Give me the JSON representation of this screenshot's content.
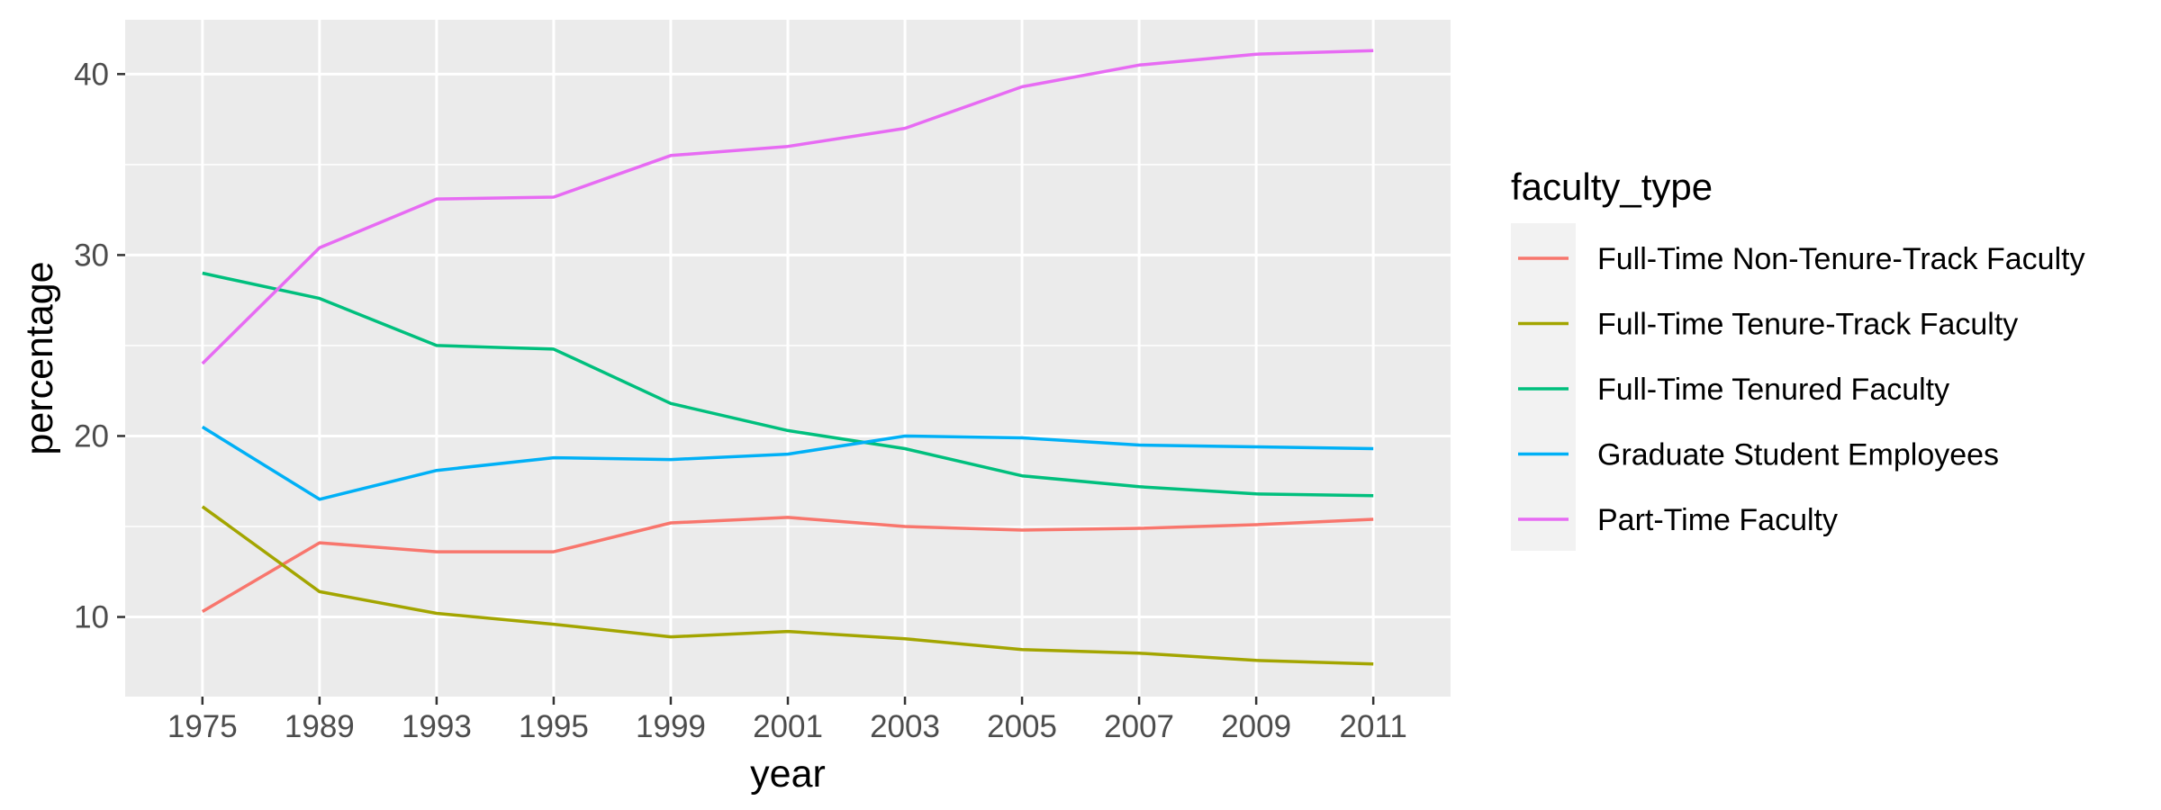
{
  "chart_data": {
    "type": "line",
    "xlabel": "year",
    "ylabel": "percentage",
    "x": [
      "1975",
      "1989",
      "1993",
      "1995",
      "1999",
      "2001",
      "2003",
      "2005",
      "2007",
      "2009",
      "2011"
    ],
    "ylim": [
      5.6,
      43
    ],
    "yticks": [
      10,
      20,
      30,
      40
    ],
    "grid": true,
    "legend": {
      "title": "faculty_type",
      "placement": "right"
    },
    "series": [
      {
        "name": "Full-Time Non-Tenure-Track Faculty",
        "color": "#F8766D",
        "values": [
          10.3,
          14.1,
          13.6,
          13.6,
          15.2,
          15.5,
          15.0,
          14.8,
          14.9,
          15.1,
          15.4
        ]
      },
      {
        "name": "Full-Time Tenure-Track Faculty",
        "color": "#A3A500",
        "values": [
          16.1,
          11.4,
          10.2,
          9.6,
          8.9,
          9.2,
          8.8,
          8.2,
          8.0,
          7.6,
          7.4
        ]
      },
      {
        "name": "Full-Time Tenured Faculty",
        "color": "#00BF7D",
        "values": [
          29.0,
          27.6,
          25.0,
          24.8,
          21.8,
          20.3,
          19.3,
          17.8,
          17.2,
          16.8,
          16.7
        ]
      },
      {
        "name": "Graduate Student Employees",
        "color": "#00B0F6",
        "values": [
          20.5,
          16.5,
          18.1,
          18.8,
          18.7,
          19.0,
          20.0,
          19.9,
          19.5,
          19.4,
          19.3
        ]
      },
      {
        "name": "Part-Time Faculty",
        "color": "#E76BF3",
        "values": [
          24.0,
          30.4,
          33.1,
          33.2,
          35.5,
          36.0,
          37.0,
          39.3,
          40.5,
          41.1,
          41.3
        ]
      }
    ]
  }
}
